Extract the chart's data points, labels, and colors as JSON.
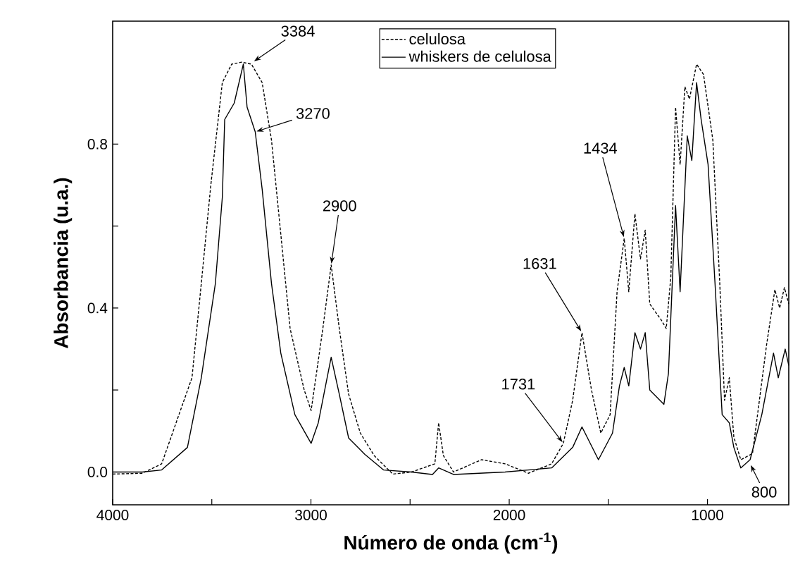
{
  "chart_data": {
    "type": "line",
    "xlabel": "Número de onda (cm$^{-1}$)",
    "ylabel": "Absorbancia (u.a.)",
    "xlim": [
      4000,
      590
    ],
    "ylim": [
      -0.08,
      1.1
    ],
    "xticks": [
      4000,
      {
        "value": 3500,
        "label": null
      },
      3000,
      {
        "value": 2500,
        "label": null
      },
      2000,
      {
        "value": 1500,
        "label": null
      },
      1000
    ],
    "yticks": [
      {
        "value": 0,
        "label": "0.0"
      },
      {
        "value": 0.2,
        "label": null
      },
      0.4,
      {
        "value": 0.6,
        "label": null
      },
      0.8
    ],
    "legend": "top right",
    "series": [
      {
        "name": "celulosa",
        "color": "#000000",
        "line_style": "dashed",
        "x": [
          4000,
          3850,
          3753,
          3600,
          3553,
          3505,
          3447,
          3400,
          3350,
          3300,
          3246,
          3199,
          3152,
          3105,
          3034,
          2999,
          2940,
          2898,
          2857,
          2810,
          2751,
          2681,
          2587,
          2493,
          2375,
          2356,
          2332,
          2281,
          2140,
          2021,
          1903,
          1786,
          1727,
          1680,
          1633,
          1585,
          1538,
          1491,
          1456,
          1420,
          1397,
          1366,
          1338,
          1314,
          1291,
          1232,
          1208,
          1185,
          1161,
          1138,
          1114,
          1091,
          1055,
          1020,
          973,
          938,
          914,
          890,
          867,
          832,
          773,
          702,
          660,
          636,
          612,
          590
        ],
        "values": [
          -0.005,
          -0.003,
          0.02,
          0.23,
          0.46,
          0.7,
          0.95,
          0.995,
          1.0,
          0.995,
          0.95,
          0.81,
          0.58,
          0.35,
          0.2,
          0.15,
          0.35,
          0.505,
          0.35,
          0.19,
          0.095,
          0.04,
          -0.005,
          0.0,
          0.02,
          0.12,
          0.04,
          0.0,
          0.03,
          0.02,
          -0.003,
          0.02,
          0.07,
          0.175,
          0.34,
          0.2,
          0.095,
          0.14,
          0.44,
          0.57,
          0.44,
          0.63,
          0.52,
          0.59,
          0.41,
          0.37,
          0.35,
          0.475,
          0.89,
          0.75,
          0.94,
          0.91,
          0.995,
          0.97,
          0.81,
          0.46,
          0.175,
          0.23,
          0.085,
          0.03,
          0.045,
          0.31,
          0.445,
          0.4,
          0.45,
          0.41
        ]
      },
      {
        "name": "whiskers de celulosa",
        "color": "#000000",
        "line_style": "solid",
        "x": [
          4000,
          3850,
          3753,
          3623,
          3553,
          3482,
          3447,
          3435,
          3387,
          3341,
          3322,
          3281,
          3246,
          3199,
          3152,
          3081,
          2999,
          2963,
          2898,
          2857,
          2810,
          2728,
          2634,
          2493,
          2387,
          2356,
          2281,
          2021,
          1786,
          1680,
          1633,
          1550,
          1479,
          1444,
          1420,
          1397,
          1366,
          1338,
          1314,
          1291,
          1220,
          1197,
          1161,
          1138,
          1102,
          1079,
          1055,
          1032,
          997,
          962,
          926,
          890,
          867,
          832,
          785,
          726,
          667,
          643,
          608,
          590
        ],
        "values": [
          0.0,
          0.0,
          0.005,
          0.06,
          0.23,
          0.46,
          0.67,
          0.86,
          0.9,
          0.995,
          0.89,
          0.83,
          0.69,
          0.46,
          0.29,
          0.14,
          0.07,
          0.12,
          0.28,
          0.19,
          0.083,
          0.043,
          0.005,
          0.0,
          -0.006,
          0.01,
          -0.006,
          0.0,
          0.01,
          0.06,
          0.11,
          0.03,
          0.095,
          0.21,
          0.255,
          0.21,
          0.34,
          0.3,
          0.34,
          0.2,
          0.165,
          0.24,
          0.65,
          0.44,
          0.82,
          0.76,
          0.95,
          0.86,
          0.75,
          0.46,
          0.14,
          0.12,
          0.06,
          0.01,
          0.03,
          0.14,
          0.29,
          0.23,
          0.3,
          0.26
        ]
      }
    ],
    "annotations": [
      {
        "text": "3384",
        "x": 3293,
        "y": 1.0
      },
      {
        "text": "3270",
        "x": 3281,
        "y": 0.83
      },
      {
        "text": "2900",
        "x": 2898,
        "y": 0.505
      },
      {
        "text": "1434",
        "x": 1420,
        "y": 0.57
      },
      {
        "text": "1631",
        "x": 1633,
        "y": 0.34
      },
      {
        "text": "1731",
        "x": 1727,
        "y": 0.07
      },
      {
        "text": "800",
        "x": 785,
        "y": 0.02
      }
    ]
  }
}
